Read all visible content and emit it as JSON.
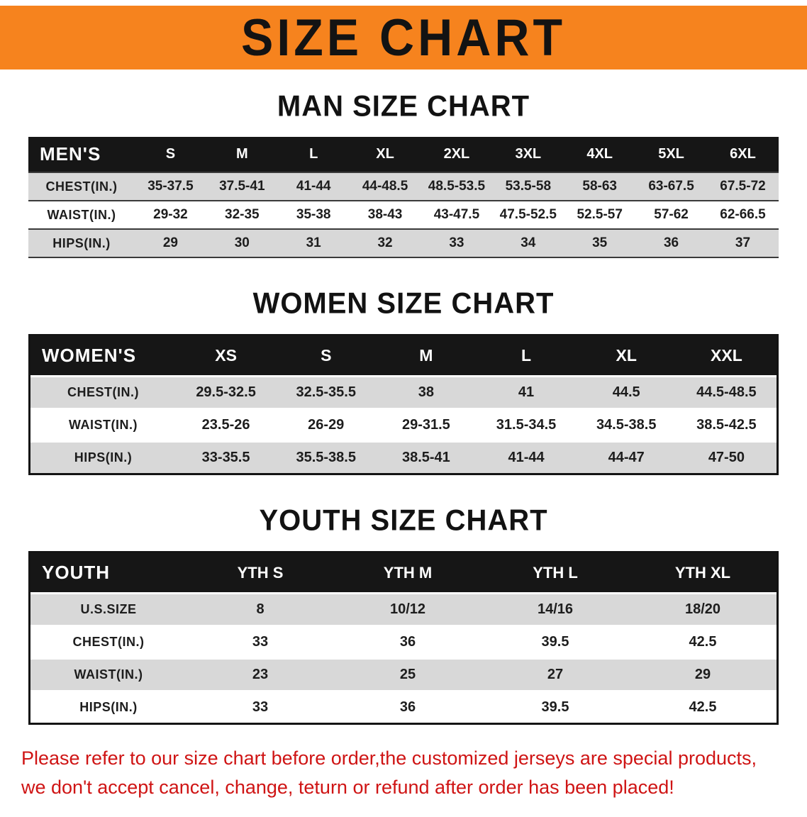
{
  "banner": {
    "title": "SIZE CHART"
  },
  "colors": {
    "banner_bg": "#f6831e",
    "table_header_bg": "#161616",
    "row_gray": "#d8d8d8",
    "disclaimer_red": "#cf1414"
  },
  "sections": [
    {
      "heading": "MAN SIZE CHART",
      "table": {
        "corner": "MEN'S",
        "columns": [
          "S",
          "M",
          "L",
          "XL",
          "2XL",
          "3XL",
          "4XL",
          "5XL",
          "6XL"
        ],
        "rows": [
          {
            "label": "CHEST(IN.)",
            "values": [
              "35-37.5",
              "37.5-41",
              "41-44",
              "44-48.5",
              "48.5-53.5",
              "53.5-58",
              "58-63",
              "63-67.5",
              "67.5-72"
            ]
          },
          {
            "label": "WAIST(IN.)",
            "values": [
              "29-32",
              "32-35",
              "35-38",
              "38-43",
              "43-47.5",
              "47.5-52.5",
              "52.5-57",
              "57-62",
              "62-66.5"
            ]
          },
          {
            "label": "HIPS(IN.)",
            "values": [
              "29",
              "30",
              "31",
              "32",
              "33",
              "34",
              "35",
              "36",
              "37"
            ]
          }
        ]
      }
    },
    {
      "heading": "WOMEN SIZE CHART",
      "table": {
        "corner": "WOMEN'S",
        "columns": [
          "XS",
          "S",
          "M",
          "L",
          "XL",
          "XXL"
        ],
        "rows": [
          {
            "label": "CHEST(IN.)",
            "values": [
              "29.5-32.5",
              "32.5-35.5",
              "38",
              "41",
              "44.5",
              "44.5-48.5"
            ]
          },
          {
            "label": "WAIST(IN.)",
            "values": [
              "23.5-26",
              "26-29",
              "29-31.5",
              "31.5-34.5",
              "34.5-38.5",
              "38.5-42.5"
            ]
          },
          {
            "label": "HIPS(IN.)",
            "values": [
              "33-35.5",
              "35.5-38.5",
              "38.5-41",
              "41-44",
              "44-47",
              "47-50"
            ]
          }
        ]
      }
    },
    {
      "heading": "YOUTH SIZE CHART",
      "table": {
        "corner": "YOUTH",
        "columns": [
          "YTH S",
          "YTH M",
          "YTH L",
          "YTH XL"
        ],
        "rows": [
          {
            "label": "U.S.SIZE",
            "values": [
              "8",
              "10/12",
              "14/16",
              "18/20"
            ]
          },
          {
            "label": "CHEST(IN.)",
            "values": [
              "33",
              "36",
              "39.5",
              "42.5"
            ]
          },
          {
            "label": "WAIST(IN.)",
            "values": [
              "23",
              "25",
              "27",
              "29"
            ]
          },
          {
            "label": "HIPS(IN.)",
            "values": [
              "33",
              "36",
              "39.5",
              "42.5"
            ]
          }
        ]
      }
    }
  ],
  "footer": {
    "line1": "Please refer to our size chart before order,the customized jerseys are special products,",
    "line2": "we don't accept cancel, change, teturn or refund after order has been placed!"
  }
}
